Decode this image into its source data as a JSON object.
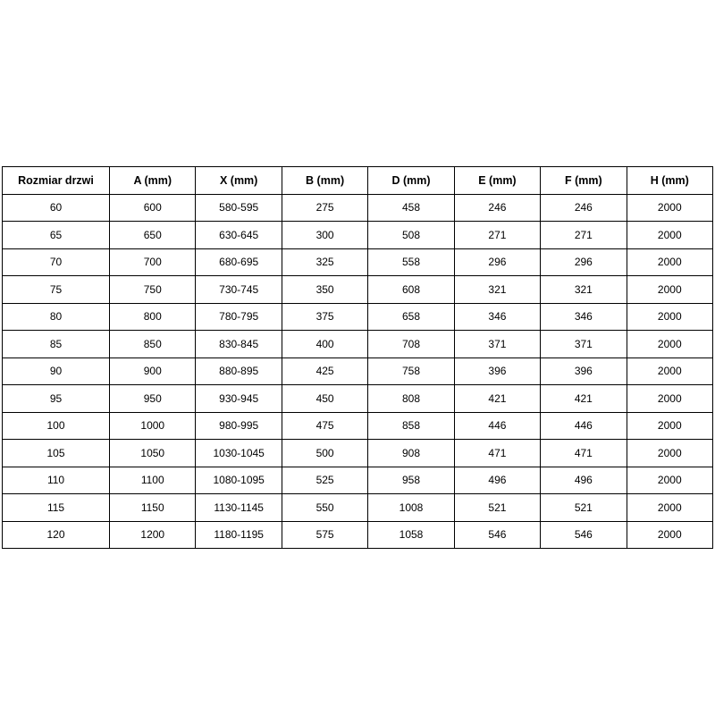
{
  "table": {
    "columns": [
      "Rozmiar drzwi",
      "A (mm)",
      "X (mm)",
      "B (mm)",
      "D (mm)",
      "E (mm)",
      "F (mm)",
      "H (mm)"
    ],
    "rows": [
      [
        "60",
        "600",
        "580-595",
        "275",
        "458",
        "246",
        "246",
        "2000"
      ],
      [
        "65",
        "650",
        "630-645",
        "300",
        "508",
        "271",
        "271",
        "2000"
      ],
      [
        "70",
        "700",
        "680-695",
        "325",
        "558",
        "296",
        "296",
        "2000"
      ],
      [
        "75",
        "750",
        "730-745",
        "350",
        "608",
        "321",
        "321",
        "2000"
      ],
      [
        "80",
        "800",
        "780-795",
        "375",
        "658",
        "346",
        "346",
        "2000"
      ],
      [
        "85",
        "850",
        "830-845",
        "400",
        "708",
        "371",
        "371",
        "2000"
      ],
      [
        "90",
        "900",
        "880-895",
        "425",
        "758",
        "396",
        "396",
        "2000"
      ],
      [
        "95",
        "950",
        "930-945",
        "450",
        "808",
        "421",
        "421",
        "2000"
      ],
      [
        "100",
        "1000",
        "980-995",
        "475",
        "858",
        "446",
        "446",
        "2000"
      ],
      [
        "105",
        "1050",
        "1030-1045",
        "500",
        "908",
        "471",
        "471",
        "2000"
      ],
      [
        "110",
        "1100",
        "1080-1095",
        "525",
        "958",
        "496",
        "496",
        "2000"
      ],
      [
        "115",
        "1150",
        "1130-1145",
        "550",
        "1008",
        "521",
        "521",
        "2000"
      ],
      [
        "120",
        "1200",
        "1180-1195",
        "575",
        "1058",
        "546",
        "546",
        "2000"
      ]
    ],
    "colors": {
      "border": "#000000",
      "text": "#000000",
      "background": "#ffffff"
    }
  }
}
